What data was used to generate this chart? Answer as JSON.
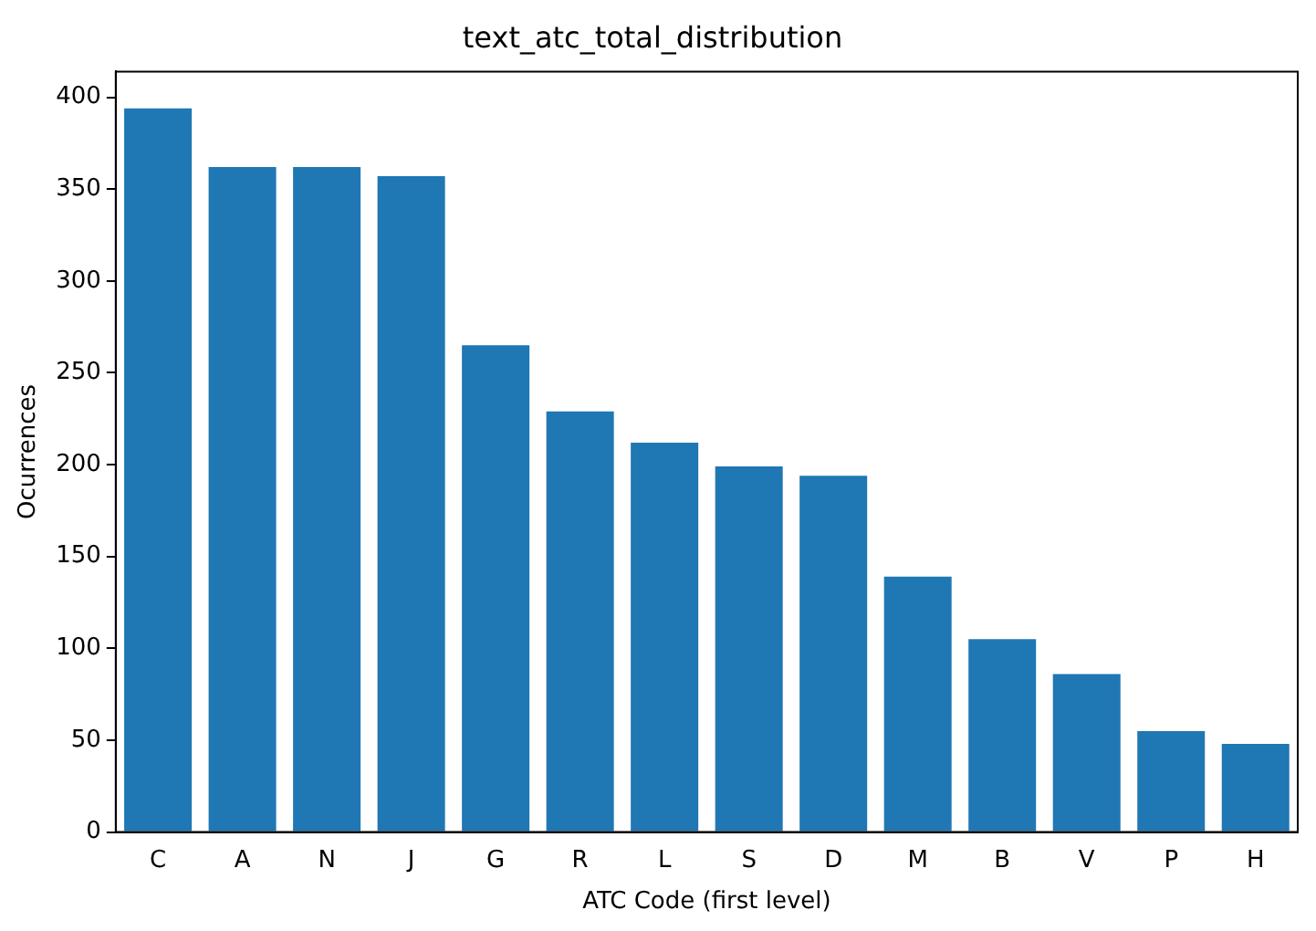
{
  "chart_data": {
    "type": "bar",
    "title": "text_atc_total_distribution",
    "xlabel": "ATC Code (first level)",
    "ylabel": "Ocurrences",
    "categories": [
      "C",
      "A",
      "N",
      "J",
      "G",
      "R",
      "L",
      "S",
      "D",
      "M",
      "B",
      "V",
      "P",
      "H"
    ],
    "values": [
      394,
      362,
      362,
      357,
      265,
      229,
      212,
      199,
      194,
      139,
      105,
      86,
      55,
      48
    ],
    "color": "#1f77b4",
    "ylim": [
      0,
      414
    ],
    "yticks": [
      0,
      50,
      100,
      150,
      200,
      250,
      300,
      350,
      400
    ],
    "grid": false
  }
}
